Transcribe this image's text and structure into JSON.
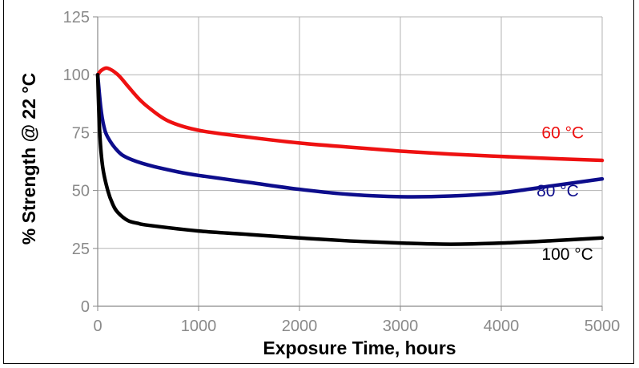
{
  "chart_data": {
    "type": "line",
    "title": "",
    "xlabel": "Exposure Time, hours",
    "ylabel": "% Strength @ 22 °C",
    "xlim": [
      0,
      5000
    ],
    "ylim": [
      0,
      125
    ],
    "x_ticks": [
      0,
      1000,
      2000,
      3000,
      4000,
      5000
    ],
    "y_ticks": [
      0,
      25,
      50,
      75,
      100,
      125
    ],
    "grid": true,
    "series": [
      {
        "name": "60 °C",
        "color": "#ee1111",
        "points": [
          [
            0,
            100
          ],
          [
            40,
            102
          ],
          [
            100,
            102.8
          ],
          [
            200,
            100
          ],
          [
            300,
            95
          ],
          [
            400,
            90
          ],
          [
            500,
            86
          ],
          [
            700,
            80
          ],
          [
            1000,
            76
          ],
          [
            1500,
            73
          ],
          [
            2000,
            70.5
          ],
          [
            2500,
            68.7
          ],
          [
            3000,
            67
          ],
          [
            3500,
            65.7
          ],
          [
            4000,
            64.7
          ],
          [
            4500,
            63.8
          ],
          [
            5000,
            63
          ]
        ]
      },
      {
        "name": "80 °C",
        "color": "#0d0d8c",
        "points": [
          [
            0,
            100
          ],
          [
            30,
            86
          ],
          [
            60,
            78
          ],
          [
            100,
            73
          ],
          [
            200,
            67
          ],
          [
            300,
            64
          ],
          [
            500,
            61
          ],
          [
            800,
            58
          ],
          [
            1000,
            56.5
          ],
          [
            1500,
            53.5
          ],
          [
            2000,
            50.5
          ],
          [
            2500,
            48.3
          ],
          [
            3000,
            47.3
          ],
          [
            3500,
            47.6
          ],
          [
            4000,
            49
          ],
          [
            4500,
            52
          ],
          [
            5000,
            55
          ]
        ]
      },
      {
        "name": "100 °C",
        "color": "#000000",
        "points": [
          [
            0,
            100
          ],
          [
            20,
            75
          ],
          [
            50,
            60
          ],
          [
            100,
            50
          ],
          [
            150,
            44
          ],
          [
            200,
            40.5
          ],
          [
            300,
            37
          ],
          [
            400,
            35.8
          ],
          [
            500,
            35
          ],
          [
            1000,
            32.5
          ],
          [
            1500,
            31
          ],
          [
            2000,
            29.5
          ],
          [
            2500,
            28.2
          ],
          [
            3000,
            27.3
          ],
          [
            3500,
            26.8
          ],
          [
            4000,
            27.3
          ],
          [
            4500,
            28.3
          ],
          [
            5000,
            29.5
          ]
        ]
      }
    ],
    "series_labels": [
      {
        "text": "60 °C",
        "color": "#ee1111",
        "x": 4400,
        "y": 72.5
      },
      {
        "text": "80 °C",
        "color": "#0d0d8c",
        "x": 4350,
        "y": 47.5
      },
      {
        "text": "100 °C",
        "color": "#000000",
        "x": 4400,
        "y": 20
      }
    ]
  }
}
